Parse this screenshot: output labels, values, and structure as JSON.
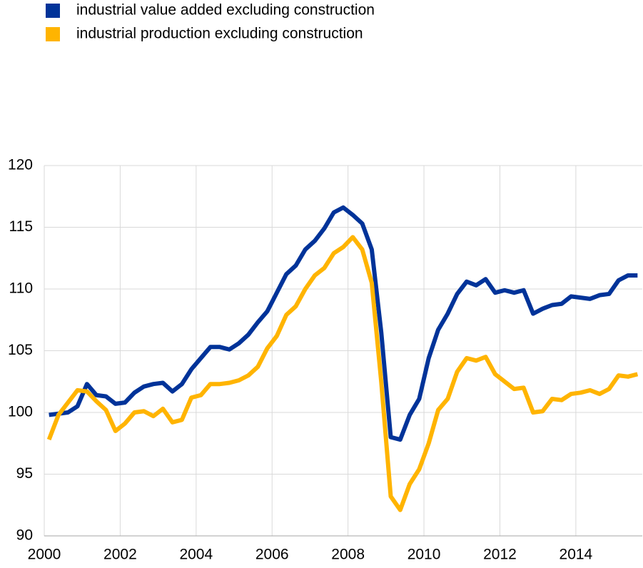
{
  "chart_data": {
    "type": "line",
    "x": [
      2000.125,
      2000.375,
      2000.625,
      2000.875,
      2001.125,
      2001.375,
      2001.625,
      2001.875,
      2002.125,
      2002.375,
      2002.625,
      2002.875,
      2003.125,
      2003.375,
      2003.625,
      2003.875,
      2004.125,
      2004.375,
      2004.625,
      2004.875,
      2005.125,
      2005.375,
      2005.625,
      2005.875,
      2006.125,
      2006.375,
      2006.625,
      2006.875,
      2007.125,
      2007.375,
      2007.625,
      2007.875,
      2008.125,
      2008.375,
      2008.625,
      2008.875,
      2009.125,
      2009.375,
      2009.625,
      2009.875,
      2010.125,
      2010.375,
      2010.625,
      2010.875,
      2011.125,
      2011.375,
      2011.625,
      2011.875,
      2012.125,
      2012.375,
      2012.625,
      2012.875,
      2013.125,
      2013.375,
      2013.625,
      2013.875,
      2014.125,
      2014.375,
      2014.625,
      2014.875,
      2015.125,
      2015.375,
      2015.625
    ],
    "series": [
      {
        "name": "industrial value added excluding construction",
        "color": "#003399",
        "values": [
          99.8,
          99.9,
          100.0,
          100.5,
          102.3,
          101.4,
          101.3,
          100.7,
          100.8,
          101.6,
          102.1,
          102.3,
          102.4,
          101.7,
          102.3,
          103.5,
          104.4,
          105.3,
          105.3,
          105.1,
          105.6,
          106.3,
          107.3,
          108.2,
          109.7,
          111.2,
          111.9,
          113.2,
          113.9,
          114.9,
          116.2,
          116.6,
          116.0,
          115.3,
          113.2,
          106.5,
          98.0,
          97.8,
          99.8,
          101.1,
          104.4,
          106.7,
          108.0,
          109.6,
          110.6,
          110.3,
          110.8,
          109.7,
          109.9,
          109.7,
          109.9,
          108.0,
          108.4,
          108.7,
          108.8,
          109.4,
          109.3,
          109.2,
          109.5,
          109.6,
          110.7,
          111.1,
          111.1
        ]
      },
      {
        "name": "industrial production excluding construction",
        "color": "#ffb400",
        "values": [
          97.8,
          99.8,
          100.8,
          101.8,
          101.7,
          100.9,
          100.2,
          98.5,
          99.1,
          100.0,
          100.1,
          99.7,
          100.3,
          99.2,
          99.4,
          101.2,
          101.4,
          102.3,
          102.3,
          102.4,
          102.6,
          103.0,
          103.7,
          105.2,
          106.2,
          107.9,
          108.6,
          110.0,
          111.1,
          111.7,
          112.9,
          113.4,
          114.2,
          113.2,
          110.5,
          102.5,
          93.2,
          92.1,
          94.2,
          95.4,
          97.5,
          100.2,
          101.1,
          103.3,
          104.4,
          104.2,
          104.5,
          103.1,
          102.5,
          101.9,
          102.0,
          100.0,
          100.1,
          101.1,
          101.0,
          101.5,
          101.6,
          101.8,
          101.5,
          101.9,
          103.0,
          102.9,
          103.1
        ]
      }
    ],
    "xlim": [
      2000,
      2015.75
    ],
    "xticks": [
      2000,
      2002,
      2004,
      2006,
      2008,
      2010,
      2012,
      2014
    ],
    "ylim": [
      90,
      120
    ],
    "yticks": [
      90,
      95,
      100,
      105,
      110,
      115,
      120
    ],
    "grid": true
  }
}
